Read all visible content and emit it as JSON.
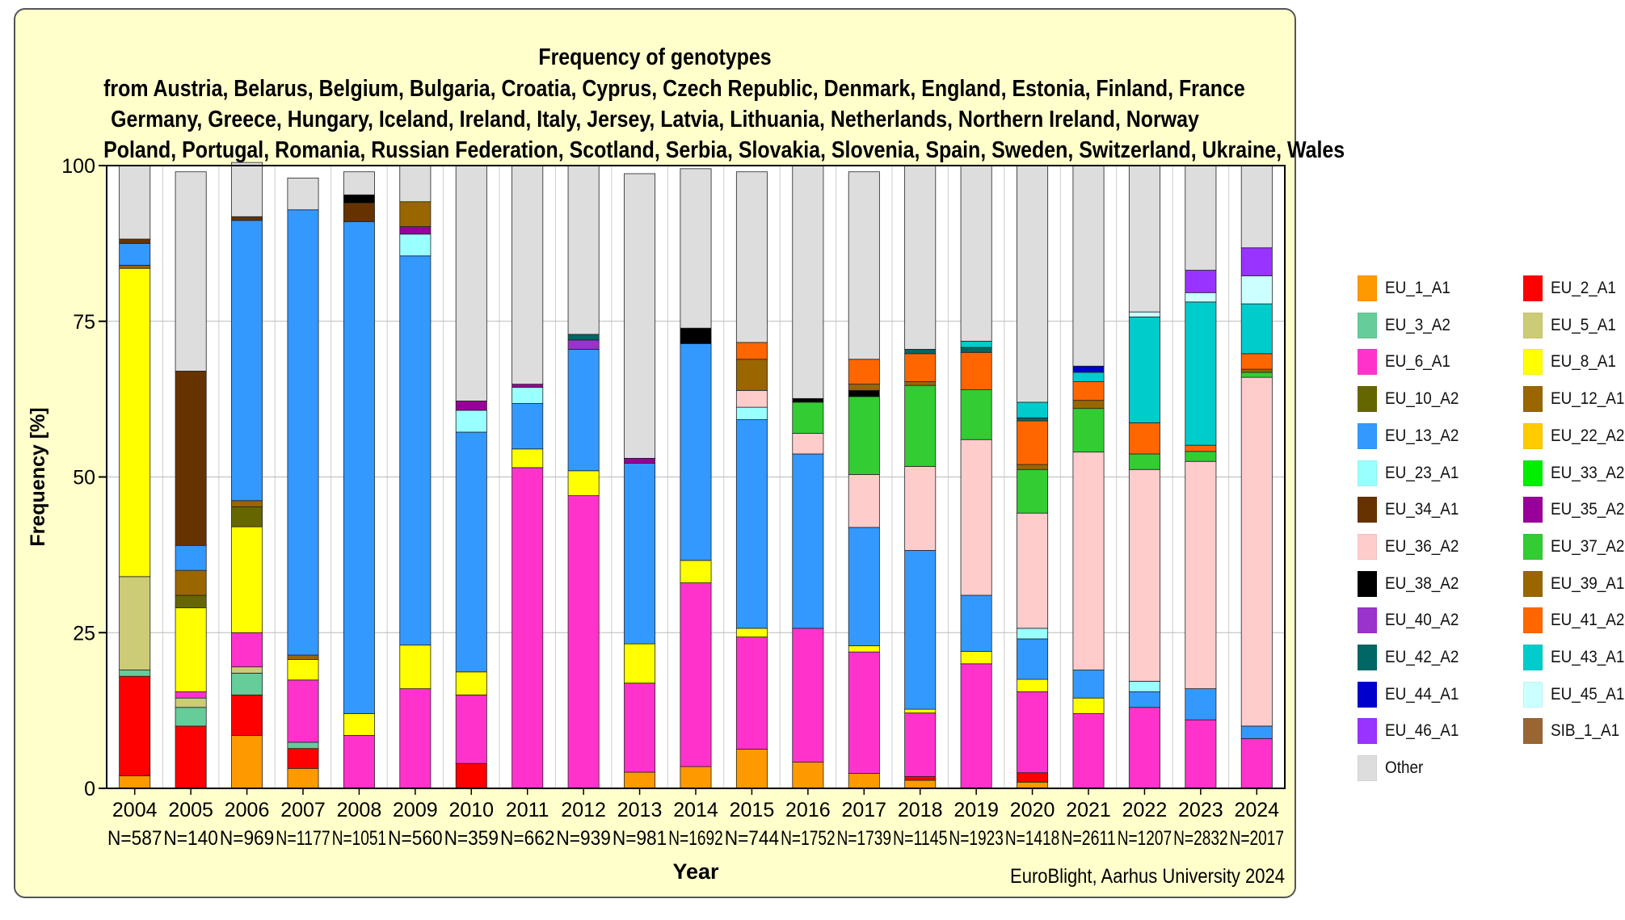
{
  "chart_data": {
    "type": "bar",
    "stacked": true,
    "title": "Frequency of genotypes",
    "subtitle_lines": [
      "from Austria, Belarus, Belgium, Bulgaria, Croatia, Cyprus, Czech Republic, Denmark, England, Estonia, Finland, France",
      "Germany, Greece, Hungary, Iceland, Ireland, Italy, Jersey, Latvia, Lithuania, Netherlands, Northern Ireland, Norway",
      "Poland, Portugal, Romania, Russian Federation, Scotland, Serbia, Slovakia, Slovenia, Spain, Sweden, Switzerland, Ukraine, Wales"
    ],
    "xlabel": "Year",
    "ylabel": "Frequency [%]",
    "ylim": [
      0,
      100
    ],
    "yticks": [
      "0",
      "25",
      "50",
      "75",
      "100"
    ],
    "categories": [
      "2004",
      "2005",
      "2006",
      "2007",
      "2008",
      "2009",
      "2010",
      "2011",
      "2012",
      "2013",
      "2014",
      "2015",
      "2016",
      "2017",
      "2018",
      "2019",
      "2020",
      "2021",
      "2022",
      "2023",
      "2024"
    ],
    "sample_sizes": [
      "N=587",
      "N=140",
      "N=969",
      "N=1177",
      "N=1051",
      "N=560",
      "N=359",
      "N=662",
      "N=939",
      "N=981",
      "N=1692",
      "N=744",
      "N=1752",
      "N=1739",
      "N=1145",
      "N=1923",
      "N=1418",
      "N=2611",
      "N=1207",
      "N=2832",
      "N=2017"
    ],
    "grid": true,
    "legend_position": "right",
    "series": [
      {
        "name": "EU_1_A1",
        "color": "#ff9900",
        "values": [
          2,
          0,
          8.5,
          3.2,
          0,
          0,
          0,
          0,
          0,
          2.6,
          3.5,
          6.3,
          4.2,
          2.4,
          1.3,
          0,
          1,
          0,
          0,
          0,
          0
        ]
      },
      {
        "name": "EU_2_A1",
        "color": "#ff0000",
        "values": [
          16,
          10,
          6.5,
          3.2,
          0,
          0,
          4,
          0,
          0,
          0,
          0,
          0,
          0,
          0,
          0.6,
          0,
          1.5,
          0,
          0,
          0,
          0
        ]
      },
      {
        "name": "EU_3_A2",
        "color": "#66cc99",
        "values": [
          1,
          3,
          3.5,
          1,
          0,
          0,
          0,
          0,
          0,
          0,
          0,
          0,
          0,
          0,
          0,
          0,
          0,
          0,
          0,
          0,
          0
        ]
      },
      {
        "name": "EU_5_A1",
        "color": "#cccc77",
        "values": [
          15,
          1.5,
          1,
          0,
          0,
          0,
          0,
          0,
          0,
          0,
          0,
          0,
          0,
          0,
          0,
          0,
          0,
          0,
          0,
          0,
          0
        ]
      },
      {
        "name": "EU_6_A1",
        "color": "#ff33cc",
        "values": [
          0,
          1,
          5.5,
          10,
          8.5,
          16,
          11,
          51.5,
          47,
          14.3,
          29.5,
          18,
          21.5,
          19.5,
          10.2,
          20,
          13,
          12,
          13,
          11,
          8
        ]
      },
      {
        "name": "EU_8_A1",
        "color": "#ffff00",
        "values": [
          49.5,
          13.5,
          17,
          3.3,
          3.5,
          7,
          3.7,
          3,
          4,
          6.3,
          3.6,
          1.4,
          0,
          1,
          0.6,
          2,
          2,
          2.5,
          0,
          0,
          0
        ]
      },
      {
        "name": "EU_10_A2",
        "color": "#666600",
        "values": [
          0,
          2,
          3.2,
          0,
          0,
          0,
          0,
          0,
          0,
          0,
          0,
          0,
          0,
          0,
          0,
          0,
          0,
          0,
          0,
          0,
          0
        ]
      },
      {
        "name": "EU_12_A1",
        "color": "#996600",
        "values": [
          0.5,
          4,
          1,
          0.7,
          0,
          0,
          0,
          0,
          0,
          0,
          0,
          0,
          0,
          0,
          0,
          0,
          0,
          0,
          0,
          0,
          0
        ]
      },
      {
        "name": "EU_13_A2",
        "color": "#3399ff",
        "values": [
          3.5,
          4,
          45,
          71.5,
          79,
          62.5,
          38.5,
          7.3,
          19.5,
          29,
          34.8,
          33.5,
          28,
          19,
          25.5,
          9,
          6.5,
          4.5,
          2.5,
          5,
          2
        ]
      },
      {
        "name": "EU_22_A2",
        "color": "#ffcc00",
        "values": [
          0,
          0,
          0,
          0,
          0,
          0,
          0,
          0,
          0,
          0,
          0,
          0,
          0,
          0,
          0,
          0,
          0,
          0,
          0,
          0,
          0
        ]
      },
      {
        "name": "EU_23_A1",
        "color": "#99ffff",
        "values": [
          0,
          0,
          0,
          0,
          0,
          3.5,
          3.5,
          2.6,
          0,
          0,
          0,
          2,
          0,
          0,
          0,
          0,
          1.7,
          0,
          1.7,
          0,
          0
        ]
      },
      {
        "name": "EU_33_A2",
        "color": "#00ee00",
        "values": [
          0,
          0,
          0,
          0,
          0,
          0,
          0,
          0,
          0,
          0,
          0,
          0,
          0,
          0,
          0,
          0,
          0,
          0,
          0,
          0,
          0
        ]
      },
      {
        "name": "EU_34_A1",
        "color": "#663300",
        "values": [
          0.7,
          28,
          0.6,
          0,
          3,
          0,
          0,
          0,
          0,
          0,
          0,
          0,
          0,
          0,
          0,
          0,
          0,
          0,
          0,
          0,
          0
        ]
      },
      {
        "name": "EU_35_A2",
        "color": "#990099",
        "values": [
          0,
          0,
          0,
          0,
          0,
          1.2,
          1.5,
          0.5,
          0,
          0.8,
          0,
          0,
          0,
          0,
          0,
          0,
          0,
          0,
          0,
          0,
          0
        ]
      },
      {
        "name": "EU_36_A2",
        "color": "#ffcccc",
        "values": [
          0,
          0,
          0,
          0,
          0,
          0,
          0,
          0,
          0,
          0,
          0,
          2.7,
          3.3,
          8.5,
          13.5,
          25,
          18.5,
          35,
          34,
          36.5,
          56
        ]
      },
      {
        "name": "EU_37_A2",
        "color": "#33cc33",
        "values": [
          0,
          0,
          0,
          0,
          0,
          0,
          0,
          0,
          0,
          0,
          0,
          0,
          5,
          12.5,
          13,
          8,
          7,
          7,
          2.5,
          1.6,
          0.8
        ]
      },
      {
        "name": "EU_38_A2",
        "color": "#000000",
        "values": [
          0,
          0,
          0,
          0,
          1.3,
          0,
          0,
          0,
          0,
          0,
          2.5,
          0,
          0.6,
          1,
          0,
          0,
          0,
          0,
          0,
          0,
          0
        ]
      },
      {
        "name": "EU_39_A1",
        "color": "#996600",
        "values": [
          0,
          0,
          0,
          0,
          0,
          4,
          0,
          0,
          0,
          0,
          0,
          5,
          0,
          1,
          0.6,
          0,
          0.8,
          1.3,
          0,
          0,
          0.5
        ]
      },
      {
        "name": "EU_40_A2",
        "color": "#9933cc",
        "values": [
          0,
          0,
          0,
          0,
          0,
          0,
          0,
          0,
          1.5,
          0,
          0,
          0,
          0,
          0,
          0,
          0,
          0,
          0,
          0,
          0,
          0
        ]
      },
      {
        "name": "EU_41_A2",
        "color": "#ff6600",
        "values": [
          0,
          0,
          0,
          0,
          0,
          0,
          0,
          0,
          0,
          0,
          0,
          2.7,
          0,
          4,
          4.5,
          6,
          7,
          3,
          5,
          1,
          2.5
        ]
      },
      {
        "name": "EU_42_A2",
        "color": "#006666",
        "values": [
          0,
          0,
          0,
          0,
          0,
          0,
          0,
          0,
          0.9,
          0,
          0,
          0,
          0,
          0,
          0.7,
          0.8,
          0.5,
          0,
          0,
          0,
          0
        ]
      },
      {
        "name": "EU_43_A1",
        "color": "#00cccc",
        "values": [
          0,
          0,
          0,
          0,
          0,
          0,
          0,
          0,
          0,
          0,
          0,
          0,
          0,
          0,
          0,
          1,
          2.5,
          1.5,
          17,
          23,
          8
        ]
      },
      {
        "name": "EU_44_A1",
        "color": "#0000cc",
        "values": [
          0,
          0,
          0,
          0,
          0,
          0,
          0,
          0,
          0,
          0,
          0,
          0,
          0,
          0,
          0,
          0,
          0,
          1,
          0,
          0,
          0
        ]
      },
      {
        "name": "EU_45_A1",
        "color": "#ccffff",
        "values": [
          0,
          0,
          0,
          0,
          0,
          0,
          0,
          0,
          0,
          0,
          0,
          0,
          0,
          0,
          0,
          0,
          0,
          0,
          0.8,
          1.5,
          4.5
        ]
      },
      {
        "name": "EU_46_A1",
        "color": "#9933ff",
        "values": [
          0,
          0,
          0,
          0,
          0,
          0,
          0,
          0,
          0,
          0,
          0,
          0,
          0,
          0,
          0,
          0,
          0,
          0,
          0,
          3.6,
          4.5
        ]
      },
      {
        "name": "SIB_1_A1",
        "color": "#996633",
        "values": [
          0,
          0,
          0,
          0,
          0,
          0,
          0,
          0,
          0,
          0,
          0,
          0,
          0,
          0,
          0,
          0,
          0,
          0,
          0,
          0,
          0
        ]
      },
      {
        "name": "Other",
        "color": "#dddddd",
        "values": [
          11.8,
          32,
          8.7,
          5.1,
          3.7,
          5.8,
          37.8,
          35.1,
          27.1,
          45.7,
          25.6,
          27.4,
          37.4,
          30.1,
          29.5,
          28.2,
          38,
          32.2,
          23.5,
          16.8,
          13.2
        ]
      }
    ]
  },
  "credit": "EuroBlight, Aarhus University 2024",
  "colors": {
    "panel_background": "#ffffcc",
    "plot_background": "#ffffff",
    "grid": "#cccccc"
  }
}
